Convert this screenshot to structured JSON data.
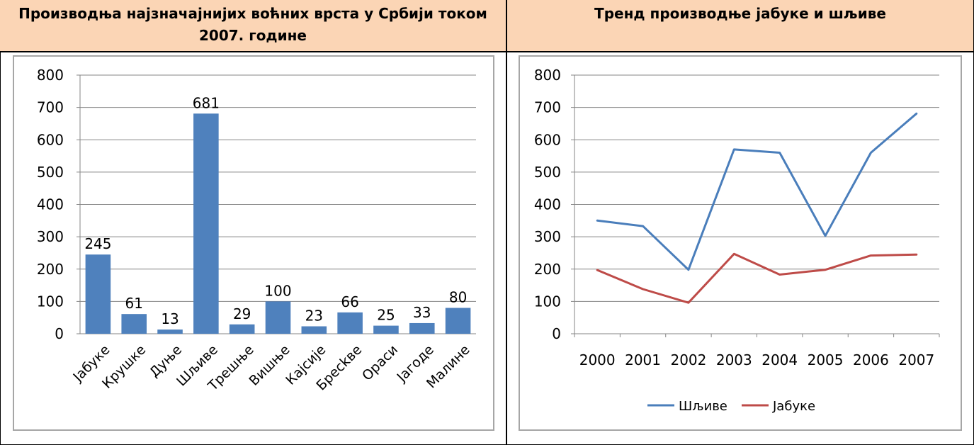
{
  "headers": {
    "left": "Производња најзначајнијих воћних врста у Србији током 2007. године",
    "right": "Тренд производње јабуке и шљиве"
  },
  "chart_data": [
    {
      "type": "bar",
      "categories": [
        "Јабуке",
        "Крушке",
        "Дуње",
        "Шљиве",
        "Трешње",
        "Вишње",
        "Кајсије",
        "Бресkве",
        "Ораси",
        "Јагоде",
        "Малине"
      ],
      "values": [
        245,
        61,
        13,
        681,
        29,
        100,
        23,
        66,
        25,
        33,
        80
      ],
      "data_labels": [
        "245",
        "61",
        "13",
        "681",
        "29",
        "100",
        "23",
        "66",
        "25",
        "33",
        "80"
      ],
      "ylim": [
        0,
        800
      ],
      "yticks": [
        "0",
        "100",
        "200",
        "300",
        "400",
        "500",
        "600",
        "700",
        "800"
      ],
      "grid": true,
      "bar_color": "#4f81bd"
    },
    {
      "type": "line",
      "x": [
        "2000",
        "2001",
        "2002",
        "2003",
        "2004",
        "2005",
        "2006",
        "2007"
      ],
      "series": [
        {
          "name": "Шљиве",
          "values": [
            350,
            333,
            198,
            570,
            560,
            303,
            560,
            681
          ],
          "color": "#4a7ebb"
        },
        {
          "name": "Јабуке",
          "values": [
            197,
            138,
            96,
            247,
            183,
            198,
            242,
            245
          ],
          "color": "#be4b48"
        }
      ],
      "ylim": [
        0,
        800
      ],
      "yticks": [
        "0",
        "100",
        "200",
        "300",
        "400",
        "500",
        "600",
        "700",
        "800"
      ],
      "grid": true,
      "legend": "bottom"
    }
  ]
}
